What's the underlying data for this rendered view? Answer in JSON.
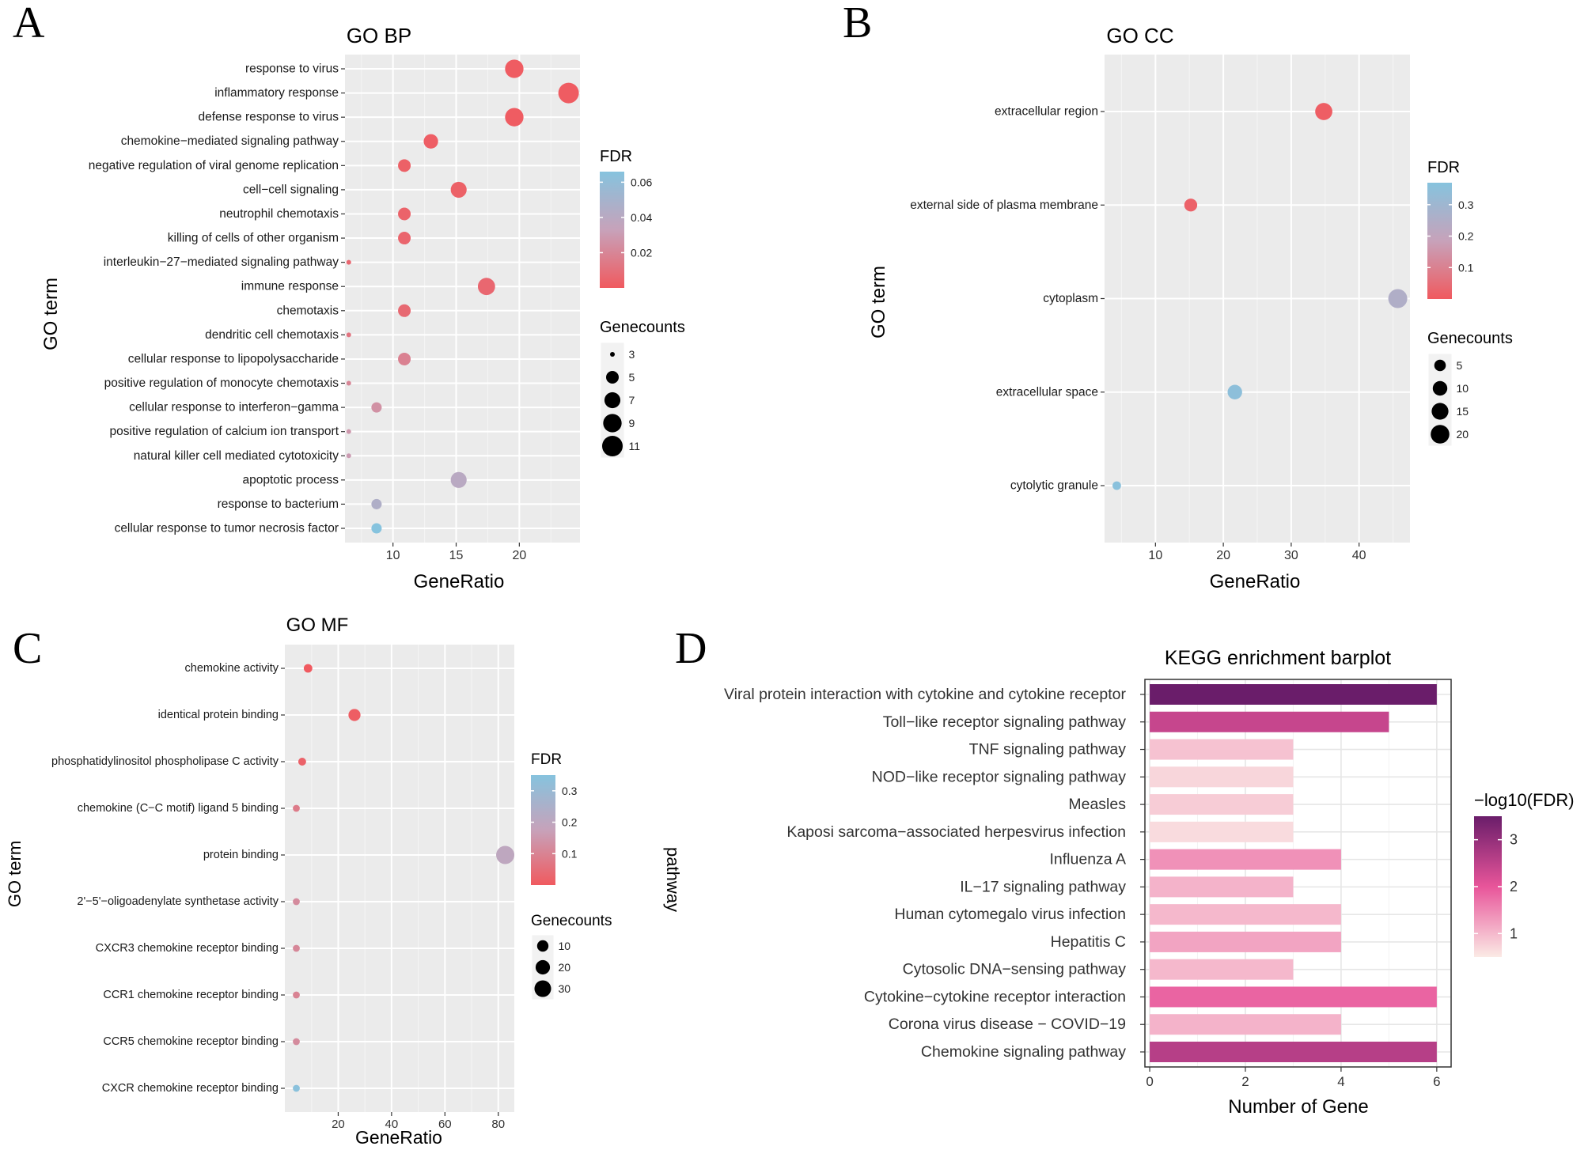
{
  "panels": [
    {
      "letter": "A",
      "chart_data": {
        "type": "scatter",
        "title": "GO BP",
        "xlabel": "GeneRatio",
        "ylabel": "GO term",
        "xlim": [
          6.2,
          24.8
        ],
        "x_ticks": [
          10,
          15,
          20
        ],
        "categories": [
          "response to virus",
          "inflammatory response",
          "defense response to virus",
          "chemokine−mediated signaling pathway",
          "negative regulation of viral genome replication",
          "cell−cell signaling",
          "neutrophil chemotaxis",
          "killing of cells of other organism",
          "interleukin−27−mediated signaling pathway",
          "immune response",
          "chemotaxis",
          "dendritic cell chemotaxis",
          "cellular response to lipopolysaccharide",
          "positive regulation of monocyte chemotaxis",
          "cellular response to interferon−gamma",
          "positive regulation of calcium ion transport",
          "natural killer cell mediated cytotoxicity",
          "apoptotic process",
          "response to bacterium",
          "cellular response to tumor necrosis factor"
        ],
        "gene_ratio": [
          19.6,
          23.9,
          19.6,
          13.0,
          10.9,
          15.2,
          10.9,
          10.9,
          6.5,
          17.4,
          10.9,
          6.5,
          10.9,
          6.5,
          8.7,
          6.5,
          6.5,
          15.2,
          8.7,
          8.7
        ],
        "gene_counts": [
          9,
          11,
          9,
          6,
          5,
          7,
          5,
          5,
          3,
          8,
          5,
          3,
          5,
          3,
          4,
          3,
          3,
          7,
          4,
          4
        ],
        "fdr": [
          0.001,
          0.001,
          0.001,
          0.002,
          0.003,
          0.003,
          0.004,
          0.005,
          0.006,
          0.006,
          0.007,
          0.012,
          0.018,
          0.02,
          0.025,
          0.028,
          0.03,
          0.04,
          0.045,
          0.066
        ],
        "color_legend": {
          "title": "FDR",
          "ticks": [
            0.02,
            0.04,
            0.06
          ],
          "labels": [
            "0.02",
            "0.04",
            "0.06"
          ],
          "range": [
            0.0,
            0.066
          ]
        },
        "size_legend": {
          "title": "Genecounts",
          "values": [
            3,
            5,
            7,
            9,
            11
          ],
          "labels": [
            "3",
            "5",
            "7",
            "9",
            "11"
          ]
        }
      }
    },
    {
      "letter": "B",
      "chart_data": {
        "type": "scatter",
        "title": "GO CC",
        "xlabel": "GeneRatio",
        "ylabel": "GO term",
        "xlim": [
          2.5,
          47.5
        ],
        "x_ticks": [
          10,
          20,
          30,
          40
        ],
        "categories": [
          "extracellular region",
          "external side of plasma membrane",
          "cytoplasm",
          "extracellular space",
          "cytolytic granule"
        ],
        "gene_ratio": [
          34.8,
          15.2,
          45.7,
          21.7,
          4.3
        ],
        "gene_counts": [
          16,
          7,
          21,
          10,
          2
        ],
        "fdr": [
          0.01,
          0.02,
          0.25,
          0.35,
          0.36
        ],
        "color_legend": {
          "title": "FDR",
          "ticks": [
            0.1,
            0.2,
            0.3
          ],
          "labels": [
            "0.1",
            "0.2",
            "0.3"
          ],
          "range": [
            0.0,
            0.37
          ]
        },
        "size_legend": {
          "title": "Genecounts",
          "values": [
            5,
            10,
            15,
            20
          ],
          "labels": [
            "5",
            "10",
            "15",
            "20"
          ]
        }
      }
    },
    {
      "letter": "C",
      "chart_data": {
        "type": "scatter",
        "title": "GO MF",
        "xlabel": "GeneRatio",
        "ylabel": "GO term",
        "xlim": [
          0,
          86
        ],
        "x_ticks": [
          20,
          40,
          60,
          80
        ],
        "categories": [
          "chemokine activity",
          "identical protein binding",
          "phosphatidylinositol phospholipase C activity",
          "chemokine (C−C motif) ligand 5 binding",
          "protein binding",
          "2'−5'−oligoadenylate synthetase activity",
          "CXCR3 chemokine receptor binding",
          "CCR1 chemokine receptor binding",
          "CCR5 chemokine receptor binding",
          "CXCR chemokine receptor binding"
        ],
        "gene_ratio": [
          8.7,
          26.1,
          6.5,
          4.3,
          82.6,
          4.3,
          4.3,
          4.3,
          4.3,
          4.3
        ],
        "gene_counts": [
          4,
          12,
          3,
          2,
          38,
          2,
          2,
          2,
          2,
          2
        ],
        "fdr": [
          0.001,
          0.01,
          0.02,
          0.08,
          0.2,
          0.12,
          0.11,
          0.1,
          0.12,
          0.34
        ],
        "color_legend": {
          "title": "FDR",
          "ticks": [
            0.1,
            0.2,
            0.3
          ],
          "labels": [
            "0.1",
            "0.2",
            "0.3"
          ],
          "range": [
            0.0,
            0.35
          ]
        },
        "size_legend": {
          "title": "Genecounts",
          "values": [
            10,
            20,
            30
          ],
          "labels": [
            "10",
            "20",
            "30"
          ]
        }
      }
    },
    {
      "letter": "D",
      "chart_data": {
        "type": "bar",
        "orientation": "horizontal",
        "title": "KEGG enrichment barplot",
        "xlabel": "Number of Gene",
        "ylabel": "pathway",
        "xlim": [
          -0.1,
          6.3
        ],
        "x_ticks": [
          0,
          2,
          4,
          6
        ],
        "categories": [
          "Viral protein interaction with cytokine and cytokine receptor",
          "Toll−like receptor signaling pathway",
          "TNF signaling pathway",
          "NOD−like receptor signaling pathway",
          "Measles",
          "Kaposi sarcoma−associated herpesvirus infection",
          "Influenza A",
          "IL−17 signaling pathway",
          "Human cytomegalo  virus infection",
          "Hepatitis C",
          "Cytosolic DNA−sensing pathway",
          "Cytokine−cytokine receptor interaction",
          "Corona virus disease − COVID−19",
          "Chemokine signaling pathway"
        ],
        "values": [
          6,
          5,
          3,
          3,
          3,
          3,
          4,
          3,
          4,
          4,
          3,
          6,
          4,
          6
        ],
        "neg_log10_fdr": [
          3.5,
          2.4,
          0.9,
          0.7,
          0.8,
          0.65,
          1.4,
          1.05,
          1.0,
          1.2,
          1.0,
          1.85,
          1.05,
          2.6
        ],
        "color_legend": {
          "title": "−log10(FDR)",
          "ticks": [
            1,
            2,
            3
          ],
          "labels": [
            "1",
            "2",
            "3"
          ],
          "range": [
            0.5,
            3.5
          ]
        }
      }
    }
  ]
}
